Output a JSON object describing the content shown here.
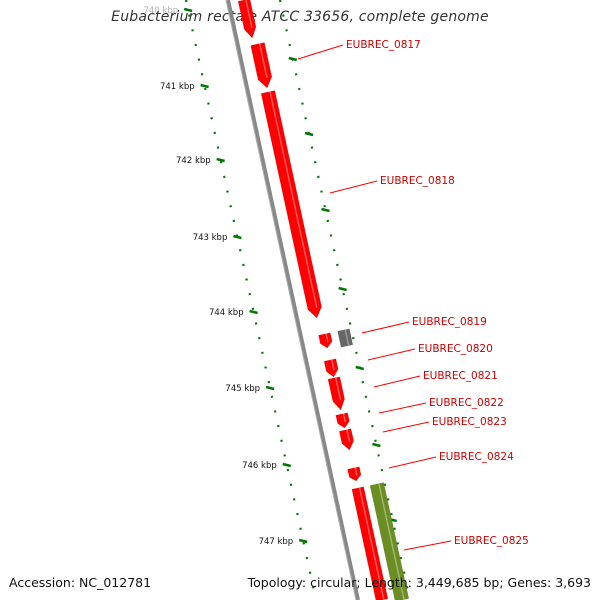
{
  "title": "Eubacterium rectale ATCC 33656, complete genome",
  "accession_text": "Accession: NC_012781",
  "summary_text": "Topology: circular; Length: 3,449,685 bp; Genes: 3,693",
  "colors": {
    "forward_gene": "#ff0000",
    "gene_label": "#cc0000",
    "other_feature": "#666666",
    "rna_feature": "#6b8e23",
    "ruler": "#007700",
    "backbone": "#888888"
  },
  "ruler_labels": [
    "740 kbp",
    "741 kbp",
    "742 kbp",
    "743 kbp",
    "744 kbp",
    "745 kbp",
    "746 kbp",
    "747 kbp"
  ],
  "gene_labels": [
    "EUBREC_0817",
    "EUBREC_0818",
    "EUBREC_0819",
    "EUBREC_0820",
    "EUBREC_0821",
    "EUBREC_0822",
    "EUBREC_0823",
    "EUBREC_0824",
    "EUBREC_0825"
  ]
}
